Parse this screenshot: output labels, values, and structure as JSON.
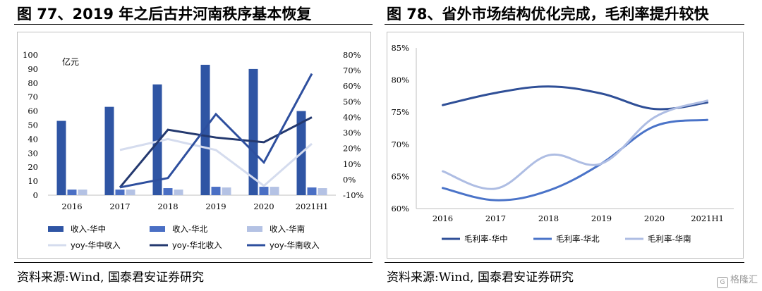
{
  "left": {
    "title": "图 77、2019 年之后古井河南秩序基本恢复",
    "unit_label": "亿元",
    "source": "资料来源:Wind, 国泰君安证券研究"
  },
  "right": {
    "title": "图 78、省外市场结构优化完成，毛利率提升较快",
    "source": "资料来源:Wind, 国泰君安证券研究"
  },
  "watermark": {
    "icon": "G",
    "text": "格隆汇"
  },
  "chart_data": [
    {
      "type": "bar",
      "categories": [
        "2016",
        "2017",
        "2018",
        "2019",
        "2020",
        "2021H1"
      ],
      "ylim": [
        0,
        100
      ],
      "y_ticks": [
        "0",
        "10",
        "20",
        "30",
        "40",
        "50",
        "60",
        "70",
        "80",
        "90",
        "100"
      ],
      "y2lim": [
        -10,
        80
      ],
      "y2_ticks": [
        "-10%",
        "0%",
        "10%",
        "20%",
        "30%",
        "40%",
        "50%",
        "60%",
        "70%",
        "80%"
      ],
      "ylabel": "亿元",
      "series": [
        {
          "name": "收入-华中",
          "values": [
            53,
            63,
            79,
            93,
            90,
            60
          ],
          "color": "#2f55a4"
        },
        {
          "name": "收入-华北",
          "values": [
            4,
            4,
            5,
            6,
            6,
            5.5
          ],
          "color": "#4a6fc4"
        },
        {
          "name": "收入-华南",
          "values": [
            4,
            4,
            4,
            5.5,
            6,
            5
          ],
          "color": "#b4c2e4"
        }
      ],
      "line_series": [
        {
          "name": "yoy-华中收入",
          "values": [
            null,
            19,
            26,
            19,
            -4,
            23
          ],
          "color": "#d5dcee"
        },
        {
          "name": "yoy-华北收入",
          "values": [
            null,
            -5,
            32,
            27,
            24,
            40
          ],
          "color": "#24396f"
        },
        {
          "name": "yoy-华南收入",
          "values": [
            null,
            -5,
            1,
            42,
            11,
            68
          ],
          "color": "#2e4f9e"
        }
      ],
      "legend_position": "bottom",
      "grid": false
    },
    {
      "type": "line",
      "x": [
        "2016",
        "2017",
        "2018",
        "2019",
        "2020",
        "2021H1"
      ],
      "ylim": [
        60,
        85
      ],
      "y_ticks": [
        "60%",
        "65%",
        "70%",
        "75%",
        "80%",
        "85%"
      ],
      "series": [
        {
          "name": "毛利率-华中",
          "values": [
            76.1,
            78.0,
            79.0,
            77.9,
            75.5,
            76.5
          ],
          "color": "#2f4f97"
        },
        {
          "name": "毛利率-华北",
          "values": [
            63.2,
            61.3,
            62.8,
            67.0,
            72.8,
            73.8
          ],
          "color": "#4a73c8"
        },
        {
          "name": "毛利率-华南",
          "values": [
            65.8,
            63.1,
            68.3,
            67.0,
            74.2,
            76.8
          ],
          "color": "#aebde3"
        }
      ],
      "legend_position": "bottom",
      "grid": false
    }
  ]
}
